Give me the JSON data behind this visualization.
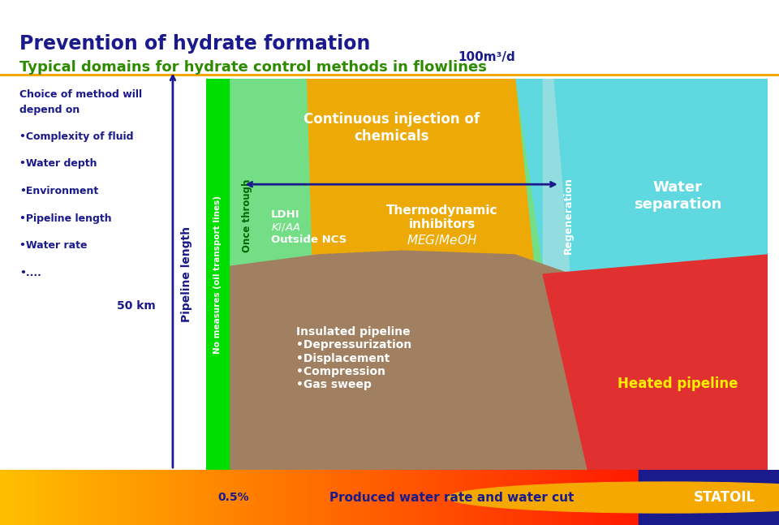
{
  "title1": "Prevention of hydrate formation",
  "title2": "Typical domains for hydrate control methods in flowlines",
  "title1_color": "#1a1a8c",
  "title2_color": "#2e8b00",
  "left_text_lines": [
    "Choice of method will",
    "depend on",
    "",
    "•Complexity of fluid",
    "•Water depth",
    "•Environment",
    "•Pipeline length",
    "•Water rate",
    "•...."
  ],
  "left_text_color": "#1a1a8c",
  "y_label": "Pipeline length",
  "y_label_color": "#1a1a8c",
  "x_label": "Produced water rate and water cut",
  "x_label_color": "#1a1a8c",
  "km_label": "50 km",
  "pct_label": "0.5%",
  "top_label": "100m³/d",
  "background_color": "#ffffff",
  "green_bar_color": "#00dd00",
  "teal_color": "#60d8e0",
  "orange_color": "#f5a800",
  "gray_color": "#a08868",
  "red_color": "#e03030",
  "green_light_color": "#90e890",
  "statoil_bg": "#1a1a8c",
  "annotations": {
    "no_measures": "No measures (oil transport lines)",
    "once_through": "Once through",
    "ldhi": "LDHI\nKI/AA\nOutside NCS",
    "continuous": "Continuous injection of\nchemicals",
    "thermo": "Thermodynamic\ninhibitors\nMEG/MeOH",
    "regeneration": "Regeneration",
    "water_sep": "Water\nseparation",
    "insulated": "Insulated pipeline\n•Depressurization\n•Displacement\n•Compression\n•Gas sweep",
    "heated": "Heated pipeline"
  }
}
